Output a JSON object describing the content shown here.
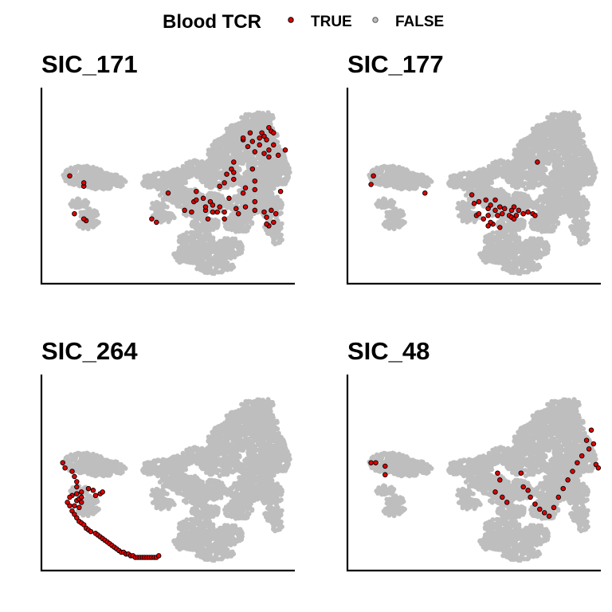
{
  "chart_data": {
    "type": "scatter",
    "description_note": "",
    "legend": {
      "title": "Blood TCR",
      "placement": "top",
      "entries": [
        {
          "label": "TRUE",
          "color": "#e00000",
          "stroke": "#000000"
        },
        {
          "label": "FALSE",
          "color": "#bebebe",
          "stroke": "#555555"
        }
      ]
    },
    "background_color": "#bebebe",
    "highlight_color": "#e00000",
    "xlim": [
      0,
      100
    ],
    "ylim": [
      0,
      100
    ],
    "grid": false,
    "panels": [
      {
        "title": "SIC_171",
        "true_points": [
          [
            8,
            58
          ],
          [
            14,
            52
          ],
          [
            14,
            54
          ],
          [
            10,
            36
          ],
          [
            15,
            32
          ],
          [
            14,
            33
          ],
          [
            43,
            33
          ],
          [
            45,
            31
          ],
          [
            50,
            48
          ],
          [
            57,
            38
          ],
          [
            60,
            37
          ],
          [
            61,
            43
          ],
          [
            62,
            49
          ],
          [
            62,
            44
          ],
          [
            65,
            45
          ],
          [
            66,
            38
          ],
          [
            66,
            40
          ],
          [
            67,
            33
          ],
          [
            68,
            43
          ],
          [
            69,
            41
          ],
          [
            69,
            37
          ],
          [
            71,
            37
          ],
          [
            72,
            40
          ],
          [
            74,
            37
          ],
          [
            74,
            33
          ],
          [
            72,
            52
          ],
          [
            74,
            54
          ],
          [
            75,
            59
          ],
          [
            77,
            62
          ],
          [
            76,
            45
          ],
          [
            79,
            39
          ],
          [
            80,
            36
          ],
          [
            78,
            60
          ],
          [
            78,
            56
          ],
          [
            82,
            48
          ],
          [
            83,
            51
          ],
          [
            86,
            62
          ],
          [
            87,
            55
          ],
          [
            87,
            50
          ],
          [
            83,
            40
          ],
          [
            87,
            38
          ],
          [
            87,
            43
          ],
          [
            91,
            37
          ],
          [
            92,
            34
          ],
          [
            94,
            38
          ],
          [
            96,
            36
          ],
          [
            95,
            31
          ],
          [
            93,
            29
          ],
          [
            98,
            49
          ],
          [
            78,
            66
          ],
          [
            82,
            79
          ],
          [
            82,
            80
          ],
          [
            85,
            83
          ],
          [
            84,
            75
          ],
          [
            86,
            78
          ],
          [
            87,
            72
          ],
          [
            89,
            76
          ],
          [
            89,
            80
          ],
          [
            90,
            83
          ],
          [
            91,
            81
          ],
          [
            92,
            79
          ],
          [
            93,
            73
          ],
          [
            91,
            71
          ],
          [
            93,
            86
          ],
          [
            94,
            84
          ],
          [
            95,
            83
          ],
          [
            95,
            76
          ],
          [
            93,
            69
          ],
          [
            97,
            70
          ],
          [
            100,
            73
          ],
          [
            92,
            30
          ]
        ]
      },
      {
        "title": "SIC_177",
        "true_points": [
          [
            7,
            58
          ],
          [
            6,
            53
          ],
          [
            29,
            48
          ],
          [
            49,
            47
          ],
          [
            50,
            42
          ],
          [
            52,
            43
          ],
          [
            51,
            35
          ],
          [
            52,
            36
          ],
          [
            54,
            33
          ],
          [
            55,
            44
          ],
          [
            56,
            39
          ],
          [
            56,
            35
          ],
          [
            57,
            41
          ],
          [
            58,
            30
          ],
          [
            59,
            38
          ],
          [
            60,
            35
          ],
          [
            61,
            40
          ],
          [
            62,
            36
          ],
          [
            63,
            39
          ],
          [
            61,
            28
          ],
          [
            57,
            31
          ],
          [
            56,
            29
          ],
          [
            65,
            35
          ],
          [
            66,
            38
          ],
          [
            66,
            34
          ],
          [
            67,
            33
          ],
          [
            68,
            35
          ],
          [
            67,
            40
          ],
          [
            69,
            38
          ],
          [
            71,
            36
          ],
          [
            73,
            37
          ],
          [
            75,
            36
          ],
          [
            76,
            35
          ],
          [
            59,
            44
          ],
          [
            77,
            66
          ]
        ]
      },
      {
        "title": "SIC_48",
        "true_points": [
          [
            6,
            58
          ],
          [
            8,
            58
          ],
          [
            12,
            56
          ],
          [
            12,
            51
          ],
          [
            70,
            52
          ],
          [
            71,
            44
          ],
          [
            73,
            42
          ],
          [
            74,
            38
          ],
          [
            76,
            34
          ],
          [
            78,
            31
          ],
          [
            80,
            29
          ],
          [
            82,
            27
          ],
          [
            84,
            32
          ],
          [
            86,
            38
          ],
          [
            88,
            43
          ],
          [
            90,
            48
          ],
          [
            92,
            53
          ],
          [
            94,
            58
          ],
          [
            96,
            62
          ],
          [
            99,
            66
          ],
          [
            98,
            71
          ],
          [
            100,
            77
          ],
          [
            101,
            69
          ],
          [
            102,
            57
          ],
          [
            103,
            55
          ],
          [
            60,
            52
          ],
          [
            61,
            48
          ],
          [
            59,
            41
          ],
          [
            62,
            38
          ],
          [
            64,
            35
          ]
        ]
      },
      {
        "title": "SIC_264",
        "true_points": [
          [
            5,
            58
          ],
          [
            6,
            55
          ],
          [
            9,
            53
          ],
          [
            10,
            50
          ],
          [
            11,
            47
          ],
          [
            11,
            44
          ],
          [
            11,
            40
          ],
          [
            13,
            41
          ],
          [
            16,
            43
          ],
          [
            18,
            42
          ],
          [
            19,
            39
          ],
          [
            21,
            40
          ],
          [
            22,
            41
          ],
          [
            11,
            36
          ],
          [
            12,
            37
          ],
          [
            13,
            38
          ],
          [
            13,
            35
          ],
          [
            10,
            33
          ],
          [
            12,
            32
          ],
          [
            9,
            39
          ],
          [
            8,
            38
          ],
          [
            7,
            35
          ],
          [
            8,
            33
          ],
          [
            9,
            30
          ],
          [
            10,
            28
          ],
          [
            11,
            26
          ],
          [
            12,
            24
          ],
          [
            13,
            23
          ],
          [
            14,
            22
          ],
          [
            15,
            20
          ],
          [
            16,
            19
          ],
          [
            17,
            18
          ],
          [
            19,
            17
          ],
          [
            20,
            16
          ],
          [
            21,
            15
          ],
          [
            22,
            14
          ],
          [
            23,
            13
          ],
          [
            24,
            12
          ],
          [
            25,
            11
          ],
          [
            26,
            10
          ],
          [
            27,
            9
          ],
          [
            28,
            8
          ],
          [
            29,
            7
          ],
          [
            30,
            6
          ],
          [
            31,
            6
          ],
          [
            32,
            5
          ],
          [
            33,
            5
          ],
          [
            34,
            4
          ],
          [
            35,
            4
          ],
          [
            36,
            3
          ],
          [
            37,
            3
          ],
          [
            38,
            3
          ],
          [
            39,
            3
          ],
          [
            40,
            3
          ],
          [
            41,
            3
          ],
          [
            42,
            3
          ],
          [
            43,
            3
          ],
          [
            44,
            3
          ],
          [
            45,
            3
          ],
          [
            46,
            4
          ]
        ]
      }
    ]
  }
}
